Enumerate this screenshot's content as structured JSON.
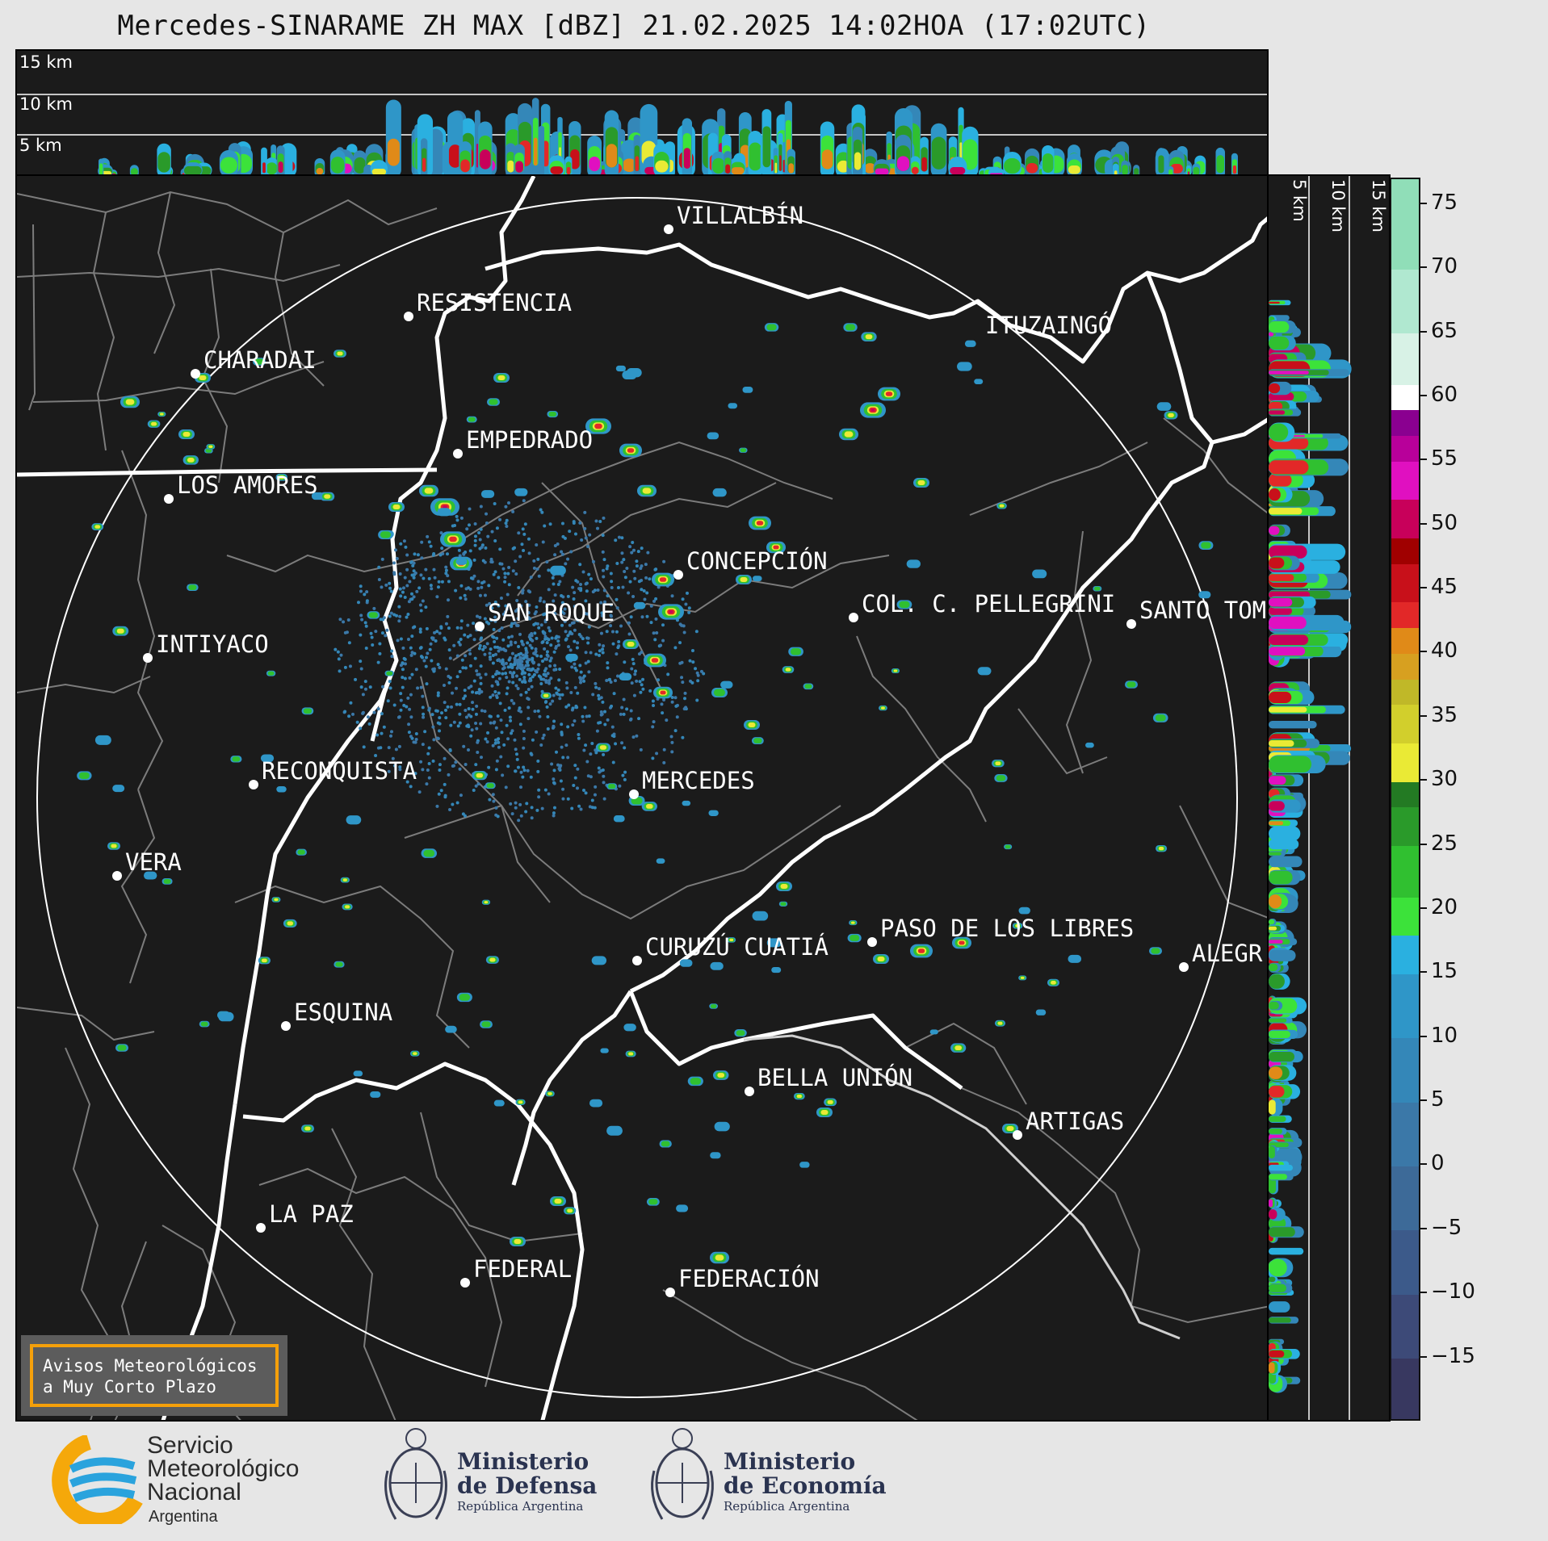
{
  "title": "Mercedes-SINARAME ZH MAX [dBZ] 21.02.2025 14:02HOA (17:02UTC)",
  "top_panel": {
    "height_labels": [
      "15 km",
      "10 km",
      "5 km"
    ]
  },
  "side_panel": {
    "height_labels": [
      "5 km",
      "10 km",
      "15 km"
    ]
  },
  "cities": [
    {
      "name": "VILLALBÍN"
    },
    {
      "name": "RESISTENCIA"
    },
    {
      "name": "CHARADAI"
    },
    {
      "name": "ITUZAINGÓ"
    },
    {
      "name": "EMPEDRADO"
    },
    {
      "name": "LOS AMORES"
    },
    {
      "name": "CONCEPCIÓN"
    },
    {
      "name": "SAN ROQUE"
    },
    {
      "name": "COL. C. PELLEGRINI"
    },
    {
      "name": "SANTO TOM"
    },
    {
      "name": "INTIYACO"
    },
    {
      "name": "RECONQUISTA"
    },
    {
      "name": "MERCEDES"
    },
    {
      "name": "VERA"
    },
    {
      "name": "CURUZÚ CUATIÁ"
    },
    {
      "name": "PASO DE LOS LIBRES"
    },
    {
      "name": "ALEGR"
    },
    {
      "name": "ESQUINA"
    },
    {
      "name": "BELLA UNIÓN"
    },
    {
      "name": "ARTIGAS"
    },
    {
      "name": "LA PAZ"
    },
    {
      "name": "FEDERAL"
    },
    {
      "name": "FEDERACIÓN"
    }
  ],
  "colorbar": {
    "unit": "dBZ",
    "range": [
      -20,
      77
    ],
    "ticks": [
      "75",
      "70",
      "65",
      "60",
      "55",
      "50",
      "45",
      "40",
      "35",
      "30",
      "25",
      "20",
      "15",
      "10",
      "5",
      "0",
      "−5",
      "−10",
      "−15"
    ],
    "tick_values": [
      75,
      70,
      65,
      60,
      55,
      50,
      45,
      40,
      35,
      30,
      25,
      20,
      15,
      10,
      5,
      0,
      -5,
      -10,
      -15
    ],
    "bands": [
      {
        "from": -20,
        "to": -15,
        "color": "#383860"
      },
      {
        "from": -15,
        "to": -10,
        "color": "#3d4a78"
      },
      {
        "from": -10,
        "to": -5,
        "color": "#3c5a8a"
      },
      {
        "from": -5,
        "to": 0,
        "color": "#3d6a98"
      },
      {
        "from": 0,
        "to": 5,
        "color": "#3b78a8"
      },
      {
        "from": 5,
        "to": 10,
        "color": "#3487b8"
      },
      {
        "from": 10,
        "to": 15,
        "color": "#2f96c8"
      },
      {
        "from": 15,
        "to": 18,
        "color": "#2ab0e0"
      },
      {
        "from": 18,
        "to": 21,
        "color": "#3ce23a"
      },
      {
        "from": 21,
        "to": 25,
        "color": "#30c030"
      },
      {
        "from": 25,
        "to": 28,
        "color": "#2a9a2a"
      },
      {
        "from": 28,
        "to": 30,
        "color": "#237a23"
      },
      {
        "from": 30,
        "to": 33,
        "color": "#eaea35"
      },
      {
        "from": 33,
        "to": 36,
        "color": "#d2cf2c"
      },
      {
        "from": 36,
        "to": 38,
        "color": "#c0b828"
      },
      {
        "from": 38,
        "to": 40,
        "color": "#d7a020"
      },
      {
        "from": 40,
        "to": 42,
        "color": "#e08a18"
      },
      {
        "from": 42,
        "to": 44,
        "color": "#e22828"
      },
      {
        "from": 44,
        "to": 47,
        "color": "#c8101a"
      },
      {
        "from": 47,
        "to": 49,
        "color": "#a00000"
      },
      {
        "from": 49,
        "to": 52,
        "color": "#c8005a"
      },
      {
        "from": 52,
        "to": 55,
        "color": "#e010c0"
      },
      {
        "from": 55,
        "to": 57,
        "color": "#b8009a"
      },
      {
        "from": 57,
        "to": 59,
        "color": "#8a0090"
      },
      {
        "from": 59,
        "to": 61,
        "color": "#ffffff"
      },
      {
        "from": 61,
        "to": 65,
        "color": "#d8f2e6"
      },
      {
        "from": 65,
        "to": 70,
        "color": "#b0e8d0"
      },
      {
        "from": 70,
        "to": 77,
        "color": "#90deb8"
      }
    ]
  },
  "alert_box": {
    "line1": "Avisos Meteorológicos",
    "line2": "a Muy Corto Plazo"
  },
  "footer": {
    "smn": {
      "line1": "Servicio",
      "line2": "Meteorológico",
      "line3": "Nacional",
      "line4": "Argentina"
    },
    "defensa": {
      "line1": "Ministerio",
      "line2": "de Defensa",
      "line3": "República Argentina"
    },
    "economia": {
      "line1": "Ministerio",
      "line2": "de Economía",
      "line3": "República Argentina"
    }
  }
}
